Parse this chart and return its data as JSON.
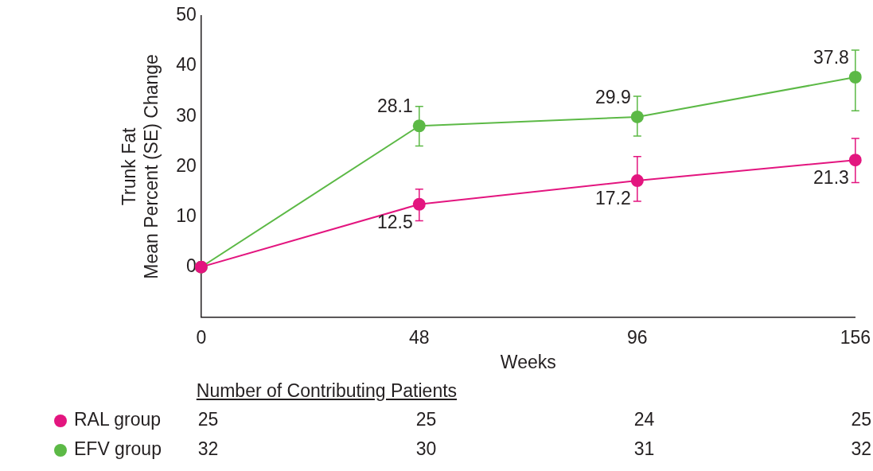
{
  "chart_data": {
    "type": "line",
    "xlabel": "Weeks",
    "ylabel": "Trunk Fat\nMean Percent (SE) Change",
    "categories": [
      "0",
      "48",
      "96",
      "156"
    ],
    "series": [
      {
        "name": "RAL group",
        "color": "#e3157f",
        "values": [
          0,
          12.5,
          17.2,
          21.3
        ],
        "errors": [
          null,
          [
            9.2,
            15.5
          ],
          [
            13.1,
            22.0
          ],
          [
            16.8,
            25.6
          ]
        ],
        "value_labels": [
          null,
          "12.5",
          "17.2",
          "21.3"
        ]
      },
      {
        "name": "EFV group",
        "color": "#5cb946",
        "values": [
          0,
          28.1,
          29.9,
          37.8
        ],
        "errors": [
          null,
          [
            24.1,
            32.0
          ],
          [
            26.1,
            34.0
          ],
          [
            31.1,
            43.2
          ]
        ],
        "value_labels": [
          null,
          "28.1",
          "29.9",
          "37.8"
        ]
      }
    ],
    "ylim": [
      -10,
      50
    ],
    "yticks": [
      0,
      10,
      20,
      30,
      40,
      50
    ],
    "grid": false,
    "legend": "bottom left",
    "marker": "circle",
    "line_style": "solid",
    "annotations": [
      "Number of Contributing Patients",
      "25",
      "25",
      "24",
      "25",
      "32",
      "30",
      "31",
      "32"
    ]
  }
}
